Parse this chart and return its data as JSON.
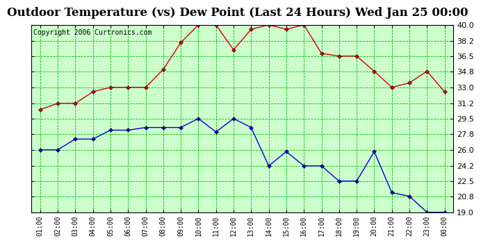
{
  "title": "Outdoor Temperature (vs) Dew Point (Last 24 Hours) Wed Jan 25 00:00",
  "copyright": "Copyright 2006 Curtronics.com",
  "x_labels": [
    "01:00",
    "02:00",
    "03:00",
    "04:00",
    "05:00",
    "06:00",
    "07:00",
    "08:00",
    "09:00",
    "10:00",
    "11:00",
    "12:00",
    "13:00",
    "14:00",
    "15:00",
    "16:00",
    "17:00",
    "18:00",
    "19:00",
    "20:00",
    "21:00",
    "22:00",
    "23:00",
    "00:00"
  ],
  "temp_red": [
    30.5,
    31.2,
    31.2,
    32.5,
    33.0,
    33.0,
    33.0,
    35.0,
    38.0,
    40.0,
    40.0,
    37.2,
    39.5,
    40.0,
    39.5,
    40.0,
    36.8,
    36.5,
    36.5,
    34.8,
    33.0,
    33.5,
    34.8,
    32.5
  ],
  "dew_blue": [
    26.0,
    26.0,
    27.2,
    27.2,
    28.2,
    28.2,
    28.5,
    28.5,
    28.5,
    29.5,
    28.0,
    29.5,
    28.5,
    24.2,
    25.8,
    24.2,
    24.2,
    22.5,
    22.5,
    25.8,
    21.2,
    20.8,
    19.0,
    19.0
  ],
  "ylim_min": 19.0,
  "ylim_max": 40.0,
  "yticks": [
    19.0,
    20.8,
    22.5,
    24.2,
    26.0,
    27.8,
    29.5,
    31.2,
    33.0,
    34.8,
    36.5,
    38.2,
    40.0
  ],
  "bg_color": "#ffffff",
  "plot_bg": "#ccffcc",
  "grid_color": "#00bb00",
  "red_color": "#cc0000",
  "blue_color": "#0000cc",
  "title_fontsize": 12,
  "copyright_fontsize": 7
}
